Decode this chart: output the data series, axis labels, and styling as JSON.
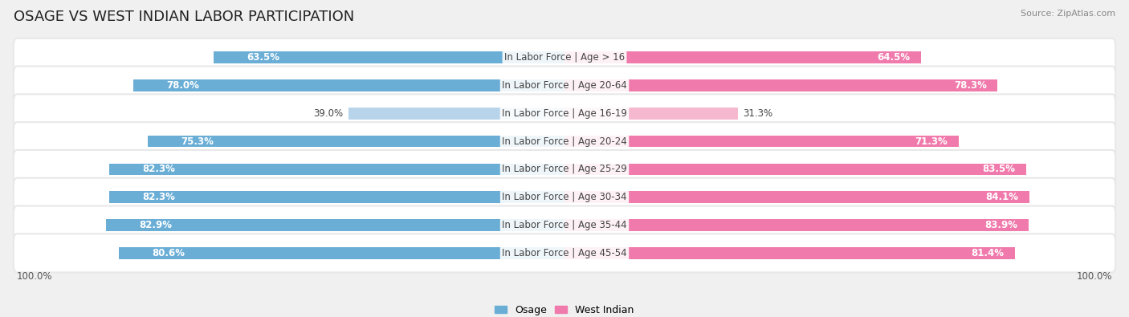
{
  "title": "OSAGE VS WEST INDIAN LABOR PARTICIPATION",
  "source": "Source: ZipAtlas.com",
  "categories": [
    "In Labor Force | Age > 16",
    "In Labor Force | Age 20-64",
    "In Labor Force | Age 16-19",
    "In Labor Force | Age 20-24",
    "In Labor Force | Age 25-29",
    "In Labor Force | Age 30-34",
    "In Labor Force | Age 35-44",
    "In Labor Force | Age 45-54"
  ],
  "osage_values": [
    63.5,
    78.0,
    39.0,
    75.3,
    82.3,
    82.3,
    82.9,
    80.6
  ],
  "west_indian_values": [
    64.5,
    78.3,
    31.3,
    71.3,
    83.5,
    84.1,
    83.9,
    81.4
  ],
  "osage_color": "#6aaed6",
  "osage_color_light": "#b8d4eb",
  "west_indian_color": "#f07aab",
  "west_indian_color_light": "#f5b8cf",
  "row_bg_color": "#e8e8e8",
  "background_color": "#f0f0f0",
  "title_fontsize": 13,
  "label_fontsize": 8.5,
  "value_fontsize": 8.5,
  "tick_fontsize": 8.5,
  "legend_fontsize": 9
}
